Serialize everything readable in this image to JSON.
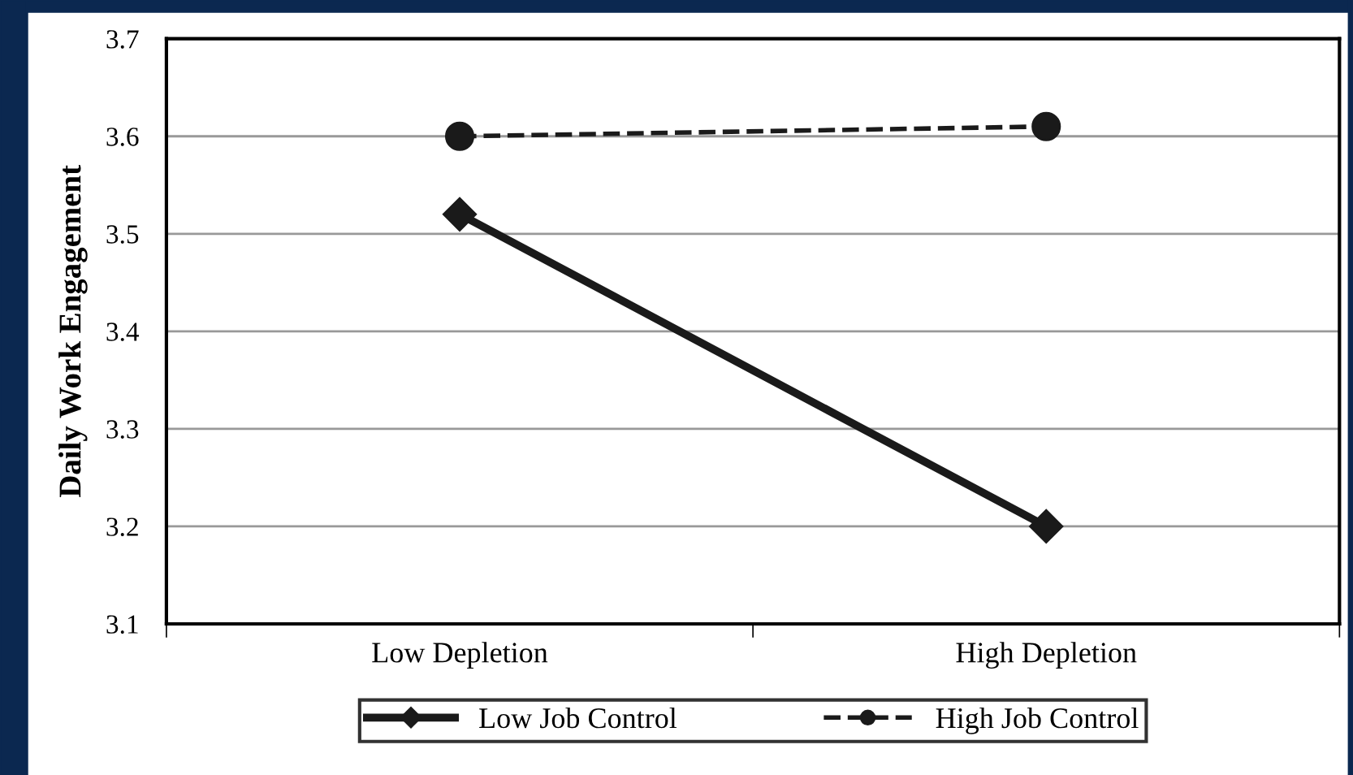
{
  "chart_data": {
    "type": "line",
    "ylabel": "Daily Work Engagement",
    "categories": [
      "Low Depletion",
      "High Depletion"
    ],
    "series": [
      {
        "name": "Low Job Control",
        "color": "#1a1a1a",
        "values": [
          3.52,
          3.2
        ],
        "marker": "diamond",
        "line_style": "solid"
      },
      {
        "name": "High Job Control",
        "color": "#1a1a1a",
        "values": [
          3.6,
          3.61
        ],
        "marker": "circle",
        "line_style": "dashed"
      }
    ],
    "ylim": [
      3.1,
      3.7
    ],
    "yticks": [
      3.1,
      3.2,
      3.3,
      3.4,
      3.5,
      3.6,
      3.7
    ],
    "grid": "y",
    "legend": "bottom"
  }
}
